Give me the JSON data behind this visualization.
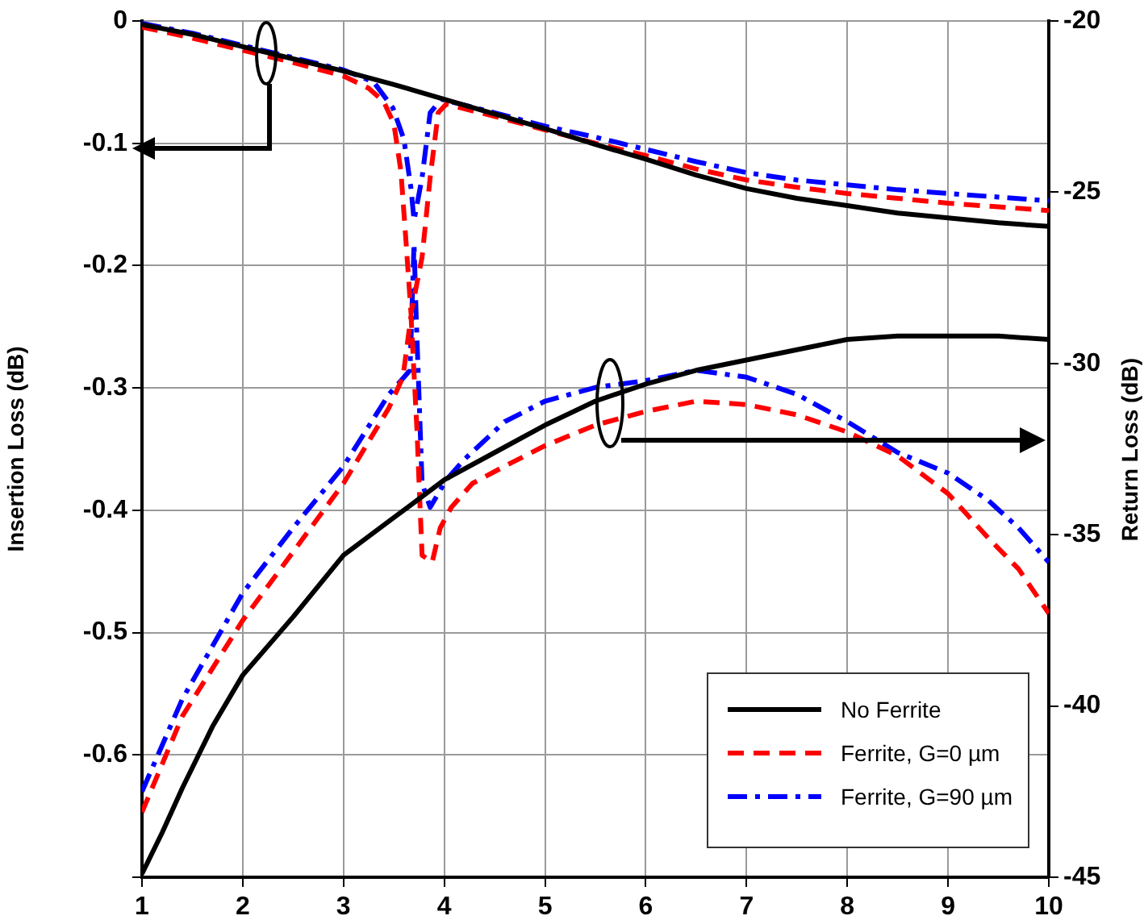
{
  "chart_data": {
    "type": "line",
    "ylabel": "Insertion Loss (dB)",
    "y2label": "Return Loss (dB)",
    "xlim": [
      1,
      10
    ],
    "xticks": [
      1,
      2,
      3,
      4,
      5,
      6,
      7,
      8,
      9,
      10
    ],
    "ylim": [
      -0.7,
      0
    ],
    "yticks": [
      0,
      -0.1,
      -0.2,
      -0.3,
      -0.4,
      -0.5,
      -0.6,
      {
        "value": -0.7,
        "label": null
      }
    ],
    "y2lim": [
      -45,
      -20
    ],
    "y2ticks": [
      -20,
      -25,
      -30,
      -35,
      -40,
      -45
    ],
    "grid": true,
    "legend": "bottom right",
    "series": [
      {
        "name": "No Ferrite",
        "color": "#000000",
        "line_style": "solid",
        "axis": "y",
        "x": [
          1,
          1.5,
          2,
          2.5,
          3,
          3.5,
          4,
          4.5,
          5,
          5.5,
          6,
          6.5,
          7,
          7.5,
          8,
          8.5,
          9,
          9.5,
          10
        ],
        "values": [
          -0.003,
          -0.011,
          -0.021,
          -0.031,
          -0.041,
          -0.052,
          -0.064,
          -0.076,
          -0.088,
          -0.101,
          -0.113,
          -0.126,
          -0.137,
          -0.145,
          -0.151,
          -0.157,
          -0.161,
          -0.165,
          -0.168
        ]
      },
      {
        "name": "Ferrite, G=0 µm",
        "color": "#ff0000",
        "line_style": "dashed",
        "axis": "y",
        "x": [
          1,
          1.5,
          2,
          2.5,
          3,
          3.25,
          3.4,
          3.5,
          3.57,
          3.62,
          3.67,
          3.73,
          3.78,
          3.86,
          3.94,
          4.02,
          4.5,
          5,
          5.5,
          6,
          6.5,
          7,
          7.5,
          8,
          8.5,
          9,
          9.5,
          10
        ],
        "values": [
          -0.005,
          -0.014,
          -0.024,
          -0.034,
          -0.045,
          -0.055,
          -0.066,
          -0.084,
          -0.123,
          -0.18,
          -0.239,
          -0.214,
          -0.193,
          -0.128,
          -0.075,
          -0.068,
          -0.078,
          -0.089,
          -0.1,
          -0.11,
          -0.121,
          -0.13,
          -0.136,
          -0.141,
          -0.145,
          -0.149,
          -0.152,
          -0.155
        ]
      },
      {
        "name": "Ferrite, G=90 µm",
        "color": "#0000ff",
        "line_style": "dashdot",
        "axis": "y",
        "x": [
          1,
          1.5,
          2,
          2.5,
          3,
          3.3,
          3.49,
          3.6,
          3.67,
          3.7,
          3.78,
          3.86,
          3.97,
          4.5,
          5,
          5.5,
          6,
          6.5,
          7,
          7.5,
          8,
          8.5,
          9,
          9.5,
          10
        ],
        "values": [
          -0.002,
          -0.01,
          -0.02,
          -0.03,
          -0.04,
          -0.05,
          -0.071,
          -0.097,
          -0.137,
          -0.163,
          -0.128,
          -0.075,
          -0.064,
          -0.075,
          -0.086,
          -0.095,
          -0.105,
          -0.115,
          -0.124,
          -0.13,
          -0.134,
          -0.138,
          -0.141,
          -0.144,
          -0.147
        ]
      },
      {
        "color": "#000000",
        "line_style": "solid",
        "axis": "y2",
        "x": [
          1,
          1.2,
          1.4,
          1.7,
          2,
          2.5,
          3,
          3.5,
          4,
          4.5,
          5,
          5.5,
          6,
          6.5,
          7,
          7.5,
          8,
          8.5,
          9,
          9.5,
          10
        ],
        "values": [
          -44.9,
          -43.7,
          -42.4,
          -40.6,
          -39.1,
          -37.4,
          -35.6,
          -34.5,
          -33.4,
          -32.6,
          -31.8,
          -31.1,
          -30.6,
          -30.2,
          -29.9,
          -29.6,
          -29.3,
          -29.2,
          -29.2,
          -29.2,
          -29.3
        ]
      },
      {
        "color": "#ff0000",
        "line_style": "dashed",
        "axis": "y2",
        "x": [
          1,
          1.4,
          2,
          2.5,
          3,
          3.45,
          3.59,
          3.67,
          3.73,
          3.75,
          3.78,
          3.88,
          3.96,
          4.07,
          4.28,
          4.6,
          5,
          5.5,
          6,
          6.5,
          7,
          7.5,
          8,
          8.5,
          9,
          9.4,
          9.7,
          10
        ],
        "values": [
          -43.1,
          -40.3,
          -37.5,
          -35.5,
          -33.5,
          -31.3,
          -30.4,
          -28.6,
          -32.0,
          -33.5,
          -35.6,
          -35.8,
          -34.8,
          -34.2,
          -33.5,
          -33.0,
          -32.4,
          -31.8,
          -31.4,
          -31.1,
          -31.2,
          -31.5,
          -32.0,
          -32.7,
          -33.8,
          -35.1,
          -36.0,
          -37.3
        ]
      },
      {
        "color": "#0000ff",
        "line_style": "dashdot",
        "axis": "y2",
        "x": [
          1,
          1.4,
          2,
          2.5,
          3,
          3.45,
          3.66,
          3.7,
          3.72,
          3.78,
          3.86,
          4.02,
          4.2,
          4.6,
          5,
          5.5,
          6,
          6.5,
          7,
          7.5,
          8,
          8.5,
          9,
          9.4,
          9.7,
          10
        ],
        "values": [
          -42.5,
          -39.8,
          -36.7,
          -34.8,
          -33.0,
          -30.9,
          -30.2,
          -26.5,
          -28.5,
          -33.5,
          -34.2,
          -33.4,
          -32.8,
          -31.7,
          -31.1,
          -30.7,
          -30.5,
          -30.2,
          -30.4,
          -30.9,
          -31.7,
          -32.6,
          -33.2,
          -34.0,
          -34.8,
          -35.8
        ]
      }
    ]
  }
}
